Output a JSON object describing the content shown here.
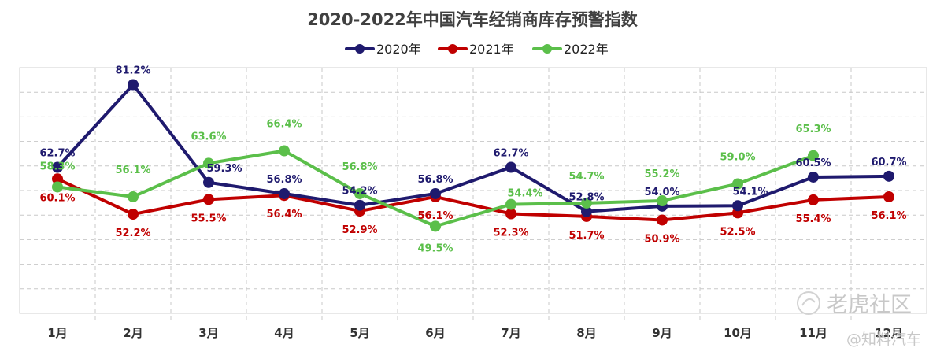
{
  "chart_data": {
    "type": "line",
    "title": "2020-2022年中国汽车经销商库存预警指数",
    "categories": [
      "1月",
      "2月",
      "3月",
      "4月",
      "5月",
      "6月",
      "7月",
      "8月",
      "9月",
      "10月",
      "11月",
      "12月"
    ],
    "ylim": [
      30,
      85
    ],
    "grid": true,
    "legend": "top",
    "series": [
      {
        "name": "2020年",
        "color": "#1f1a6e",
        "values": [
          62.7,
          81.2,
          59.3,
          56.8,
          54.2,
          56.8,
          62.7,
          52.8,
          54.0,
          54.1,
          60.5,
          60.7
        ],
        "labels": [
          "62.7%",
          "81.2%",
          "59.3%",
          "56.8%",
          "54.2%",
          "56.8%",
          "62.7%",
          "52.8%",
          "54.0%",
          "54.1%",
          "60.5%",
          "60.7%"
        ]
      },
      {
        "name": "2021年",
        "color": "#c00000",
        "values": [
          60.1,
          52.2,
          55.5,
          56.4,
          52.9,
          56.1,
          52.3,
          51.7,
          50.9,
          52.5,
          55.4,
          56.1
        ],
        "labels": [
          "60.1%",
          "52.2%",
          "55.5%",
          "56.4%",
          "52.9%",
          "56.1%",
          "52.3%",
          "51.7%",
          "50.9%",
          "52.5%",
          "55.4%",
          "56.1%"
        ]
      },
      {
        "name": "2022年",
        "color": "#5bbf4a",
        "values": [
          58.3,
          56.1,
          63.6,
          66.4,
          56.8,
          49.5,
          54.4,
          54.7,
          55.2,
          59.0,
          65.3,
          null
        ],
        "labels": [
          "58.3%",
          "56.1%",
          "63.6%",
          "66.4%",
          "56.8%",
          "49.5%",
          "54.4%",
          "54.7%",
          "55.2%",
          "59.0%",
          "65.3%",
          null
        ]
      }
    ]
  },
  "watermarks": [
    "老虎社区",
    "@知料汽车"
  ]
}
